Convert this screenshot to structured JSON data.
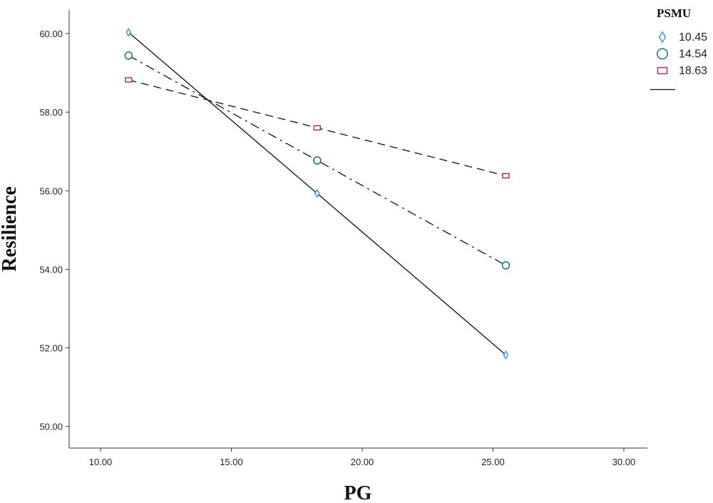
{
  "chart_data": {
    "type": "line",
    "xlabel": "PG",
    "ylabel": "Resilience",
    "xlim": [
      8.8,
      30.9
    ],
    "ylim": [
      49.45,
      60.6
    ],
    "xticks": [
      "10.00",
      "15.00",
      "20.00",
      "25.00",
      "30.00"
    ],
    "yticks": [
      "50.00",
      "52.00",
      "54.00",
      "56.00",
      "58.00",
      "60.00"
    ],
    "x": [
      11.07,
      18.28,
      25.49
    ],
    "legend": {
      "title": "PSMU",
      "position": "top-right",
      "entries": [
        "10.45",
        "14.54",
        "18.63",
        ""
      ]
    },
    "series": [
      {
        "name": "10.45",
        "values": [
          60.03,
          55.93,
          51.82
        ],
        "marker": "diamond",
        "marker_color": "#3b8fd6",
        "line_style": "solid"
      },
      {
        "name": "14.54",
        "values": [
          59.44,
          56.77,
          54.1
        ],
        "marker": "circle",
        "marker_color": "#1f6f78",
        "line_style": "dash-dot"
      },
      {
        "name": "18.63",
        "values": [
          58.82,
          57.6,
          56.38
        ],
        "marker": "rect",
        "marker_color": "#b0306a",
        "line_style": "dashed"
      }
    ],
    "grid": false
  }
}
